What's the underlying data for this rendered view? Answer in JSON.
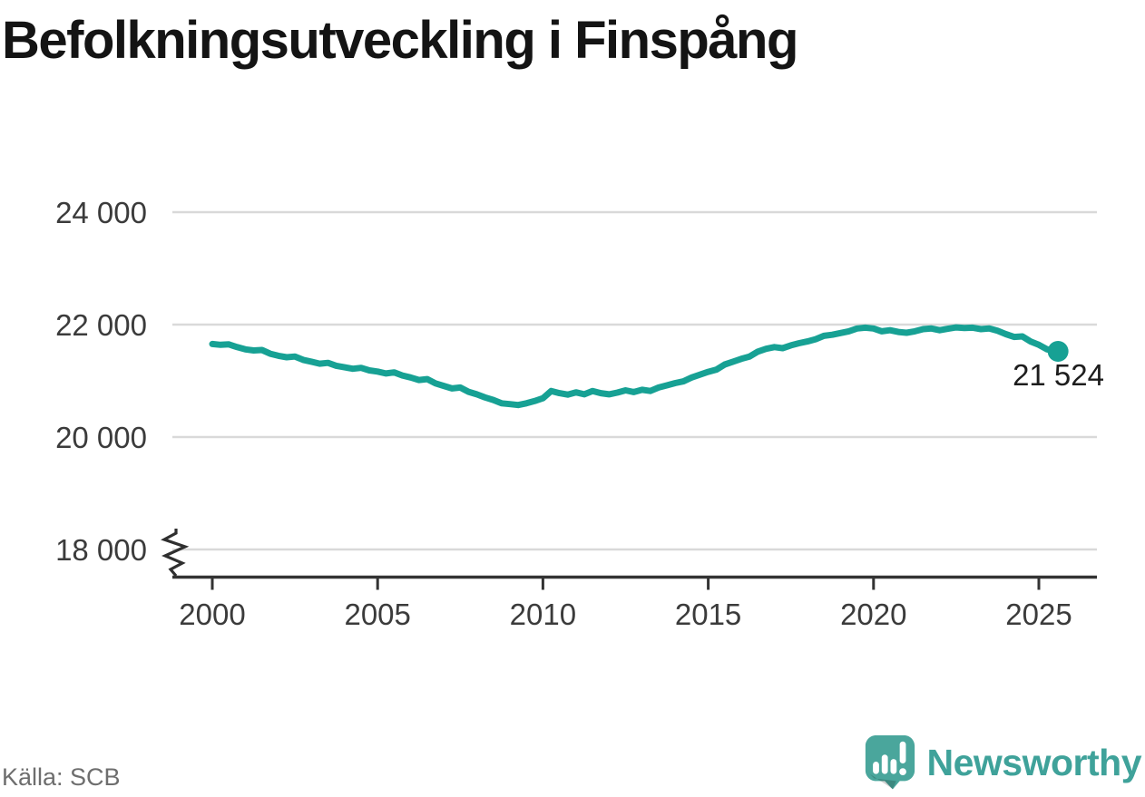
{
  "title": "Befolkningsutveckling i Finspång",
  "source": "Källa: SCB",
  "brand": {
    "name": "Newsworthy",
    "icon": "newsworthy-speech-bubble-chart-icon",
    "wordmark_color": "#3fa29a",
    "icon_color": "#4aa69c"
  },
  "chart_data": {
    "type": "line",
    "title": "Befolkningsutveckling i Finspång",
    "series_name": "Befolkning i Finspång",
    "xlabel": "",
    "ylabel": "",
    "x_range": [
      2000,
      2025.58
    ],
    "y_axis_break": true,
    "grid": true,
    "legend": "none",
    "line_color": "#17a194",
    "grid_color": "#d9d9d9",
    "axis_color": "#333333",
    "y_ticks": [
      {
        "value": 24000,
        "label": "24 000"
      },
      {
        "value": 22000,
        "label": "22 000"
      },
      {
        "value": 20000,
        "label": "20 000"
      },
      {
        "value": 18000,
        "label": "18 000"
      }
    ],
    "x_ticks": [
      {
        "value": 2000,
        "label": "2000"
      },
      {
        "value": 2005,
        "label": "2005"
      },
      {
        "value": 2010,
        "label": "2010"
      },
      {
        "value": 2015,
        "label": "2015"
      },
      {
        "value": 2020,
        "label": "2020"
      },
      {
        "value": 2025,
        "label": "2025"
      }
    ],
    "end_value": 21524,
    "end_label": "21 524",
    "points": [
      [
        2000.0,
        21655
      ],
      [
        2000.25,
        21640
      ],
      [
        2000.5,
        21648
      ],
      [
        2000.75,
        21600
      ],
      [
        2001.0,
        21560
      ],
      [
        2001.25,
        21540
      ],
      [
        2001.5,
        21548
      ],
      [
        2001.75,
        21482
      ],
      [
        2002.0,
        21445
      ],
      [
        2002.25,
        21420
      ],
      [
        2002.5,
        21432
      ],
      [
        2002.75,
        21372
      ],
      [
        2003.0,
        21340
      ],
      [
        2003.25,
        21305
      ],
      [
        2003.5,
        21320
      ],
      [
        2003.75,
        21268
      ],
      [
        2004.0,
        21240
      ],
      [
        2004.25,
        21215
      ],
      [
        2004.5,
        21230
      ],
      [
        2004.75,
        21185
      ],
      [
        2005.0,
        21165
      ],
      [
        2005.25,
        21130
      ],
      [
        2005.5,
        21150
      ],
      [
        2005.75,
        21095
      ],
      [
        2006.0,
        21060
      ],
      [
        2006.25,
        21015
      ],
      [
        2006.5,
        21030
      ],
      [
        2006.75,
        20955
      ],
      [
        2007.0,
        20910
      ],
      [
        2007.25,
        20865
      ],
      [
        2007.5,
        20880
      ],
      [
        2007.75,
        20805
      ],
      [
        2008.0,
        20760
      ],
      [
        2008.25,
        20705
      ],
      [
        2008.5,
        20660
      ],
      [
        2008.75,
        20600
      ],
      [
        2009.0,
        20585
      ],
      [
        2009.25,
        20570
      ],
      [
        2009.5,
        20600
      ],
      [
        2009.75,
        20640
      ],
      [
        2010.0,
        20690
      ],
      [
        2010.25,
        20820
      ],
      [
        2010.5,
        20780
      ],
      [
        2010.75,
        20755
      ],
      [
        2011.0,
        20795
      ],
      [
        2011.25,
        20760
      ],
      [
        2011.5,
        20820
      ],
      [
        2011.75,
        20780
      ],
      [
        2012.0,
        20760
      ],
      [
        2012.25,
        20790
      ],
      [
        2012.5,
        20830
      ],
      [
        2012.75,
        20800
      ],
      [
        2013.0,
        20840
      ],
      [
        2013.25,
        20820
      ],
      [
        2013.5,
        20880
      ],
      [
        2013.75,
        20920
      ],
      [
        2014.0,
        20960
      ],
      [
        2014.25,
        20990
      ],
      [
        2014.5,
        21060
      ],
      [
        2014.75,
        21110
      ],
      [
        2015.0,
        21160
      ],
      [
        2015.25,
        21200
      ],
      [
        2015.5,
        21290
      ],
      [
        2015.75,
        21340
      ],
      [
        2016.0,
        21390
      ],
      [
        2016.25,
        21430
      ],
      [
        2016.5,
        21520
      ],
      [
        2016.75,
        21570
      ],
      [
        2017.0,
        21600
      ],
      [
        2017.25,
        21580
      ],
      [
        2017.5,
        21630
      ],
      [
        2017.75,
        21670
      ],
      [
        2018.0,
        21700
      ],
      [
        2018.25,
        21740
      ],
      [
        2018.5,
        21800
      ],
      [
        2018.75,
        21820
      ],
      [
        2019.0,
        21850
      ],
      [
        2019.25,
        21880
      ],
      [
        2019.5,
        21930
      ],
      [
        2019.75,
        21945
      ],
      [
        2020.0,
        21930
      ],
      [
        2020.25,
        21880
      ],
      [
        2020.5,
        21900
      ],
      [
        2020.75,
        21870
      ],
      [
        2021.0,
        21855
      ],
      [
        2021.25,
        21880
      ],
      [
        2021.5,
        21920
      ],
      [
        2021.75,
        21930
      ],
      [
        2022.0,
        21900
      ],
      [
        2022.25,
        21925
      ],
      [
        2022.5,
        21950
      ],
      [
        2022.75,
        21940
      ],
      [
        2023.0,
        21945
      ],
      [
        2023.25,
        21920
      ],
      [
        2023.5,
        21930
      ],
      [
        2023.75,
        21890
      ],
      [
        2024.0,
        21830
      ],
      [
        2024.25,
        21780
      ],
      [
        2024.5,
        21790
      ],
      [
        2024.75,
        21700
      ],
      [
        2025.0,
        21640
      ],
      [
        2025.25,
        21560
      ],
      [
        2025.58,
        21524
      ]
    ]
  }
}
